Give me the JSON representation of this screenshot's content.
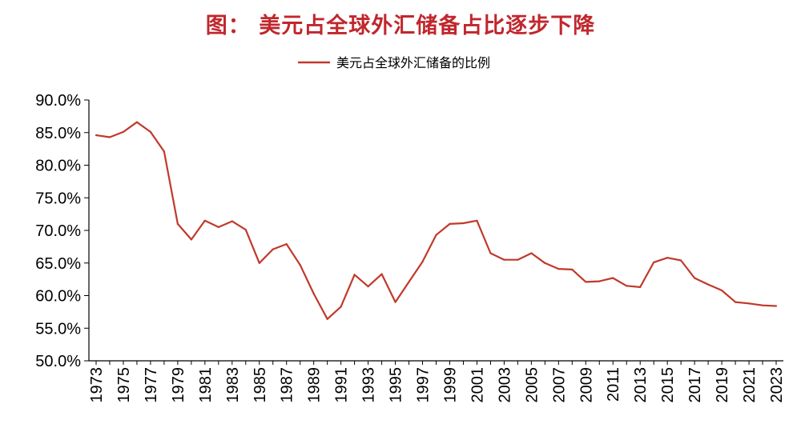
{
  "title": "图：  美元占全球外汇储备占比逐步下降",
  "chart_data": {
    "type": "line",
    "title": "图：  美元占全球外汇储备占比逐步下降",
    "xlabel": "",
    "ylabel": "",
    "ylim": [
      50,
      90
    ],
    "yticks": [
      "50.0%",
      "55.0%",
      "60.0%",
      "65.0%",
      "70.0%",
      "75.0%",
      "80.0%",
      "85.0%",
      "90.0%"
    ],
    "xticks": [
      "1973",
      "1975",
      "1977",
      "1979",
      "1981",
      "1983",
      "1985",
      "1987",
      "1989",
      "1991",
      "1993",
      "1995",
      "1997",
      "1999",
      "2001",
      "2003",
      "2005",
      "2007",
      "2009",
      "2011",
      "2013",
      "2015",
      "2017",
      "2019",
      "2021",
      "2023"
    ],
    "legend_position": "top-center",
    "grid": false,
    "color": "#c0392b",
    "x": [
      1973,
      1974,
      1975,
      1976,
      1977,
      1978,
      1979,
      1980,
      1981,
      1982,
      1983,
      1984,
      1985,
      1986,
      1987,
      1988,
      1989,
      1990,
      1991,
      1992,
      1993,
      1994,
      1995,
      1996,
      1997,
      1998,
      1999,
      2000,
      2001,
      2002,
      2003,
      2004,
      2005,
      2006,
      2007,
      2008,
      2009,
      2010,
      2011,
      2012,
      2013,
      2014,
      2015,
      2016,
      2017,
      2018,
      2019,
      2020,
      2021,
      2022,
      2023
    ],
    "series": [
      {
        "name": "美元占全球外汇储备的比例",
        "values": [
          84.6,
          84.3,
          85.1,
          86.6,
          85.1,
          82.1,
          71.0,
          68.6,
          71.5,
          70.5,
          71.4,
          70.1,
          65.0,
          67.1,
          67.9,
          64.7,
          60.3,
          56.4,
          58.3,
          63.2,
          61.4,
          63.3,
          59.0,
          62.1,
          65.2,
          69.3,
          71.0,
          71.1,
          71.5,
          66.5,
          65.5,
          65.5,
          66.5,
          65.0,
          64.1,
          64.0,
          62.1,
          62.2,
          62.7,
          61.5,
          61.3,
          65.1,
          65.8,
          65.4,
          62.7,
          61.7,
          60.8,
          59.0,
          58.8,
          58.5,
          58.4
        ]
      }
    ]
  }
}
